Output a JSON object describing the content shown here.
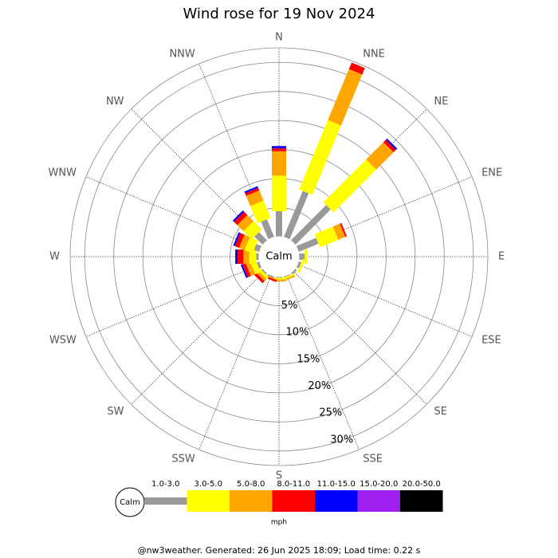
{
  "chart_data": {
    "type": "windrose",
    "title": "Wind rose for 19 Nov 2024",
    "directions": [
      "N",
      "NNE",
      "NE",
      "ENE",
      "E",
      "ESE",
      "SE",
      "SSE",
      "S",
      "SSW",
      "SW",
      "WSW",
      "W",
      "WNW",
      "NW",
      "NNW"
    ],
    "series": [
      {
        "name": "1.0-3.0",
        "color": "#999999",
        "values": [
          4.4,
          8.6,
          8.6,
          3.7,
          1.0,
          0.5,
          0.4,
          0.2,
          0.2,
          0.3,
          0.3,
          0.5,
          0.5,
          1.0,
          2.0,
          3.3
        ]
      },
      {
        "name": "3.0-5.0",
        "color": "#ffff00",
        "values": [
          6.1,
          12.9,
          10.4,
          3.4,
          0.5,
          0.4,
          0,
          0.3,
          0.3,
          0,
          0.5,
          1.0,
          1.2,
          1.5,
          2.0,
          3.2
        ]
      },
      {
        "name": "5.0-8.0",
        "color": "#ffa500",
        "values": [
          4.2,
          9.5,
          4.2,
          1.3,
          0,
          0,
          0,
          0.3,
          0.3,
          0.2,
          0.5,
          0.8,
          1.0,
          1.0,
          1.5,
          1.9
        ]
      },
      {
        "name": "8.0-11.0",
        "color": "#ff0000",
        "values": [
          0.5,
          1.2,
          0.6,
          0.3,
          0,
          0,
          0,
          0,
          0,
          0.3,
          0.5,
          0.6,
          1.0,
          0.8,
          0.8,
          0.5
        ]
      },
      {
        "name": "11.0-15.0",
        "color": "#0000ff",
        "values": [
          0.4,
          0,
          0.3,
          0,
          0,
          0,
          0,
          0,
          0,
          0,
          0,
          0.3,
          0.4,
          0.3,
          0.3,
          0.3
        ]
      },
      {
        "name": "15.0-20.0",
        "color": "#a020f0",
        "values": [
          0,
          0,
          0,
          0,
          0,
          0,
          0,
          0,
          0,
          0,
          0,
          0,
          0,
          0,
          0,
          0
        ]
      },
      {
        "name": "20.0-50.0",
        "color": "#000000",
        "values": [
          0,
          0,
          0,
          0,
          0,
          0,
          0,
          0,
          0,
          0,
          0,
          0,
          0,
          0,
          0,
          0
        ]
      }
    ],
    "rlim": [
      0,
      32.5
    ],
    "rticks": [
      {
        "value": 5,
        "label": "5%"
      },
      {
        "value": 10,
        "label": "10%"
      },
      {
        "value": 15,
        "label": "15%"
      },
      {
        "value": 20,
        "label": "20%"
      },
      {
        "value": 25,
        "label": "25%"
      },
      {
        "value": 30,
        "label": "30%"
      }
    ],
    "calm_label": "Calm",
    "unit": "mph",
    "footer": "@nw3weather. Generated: 26 Jun 2025 18:09; Load time: 0.22 s"
  }
}
